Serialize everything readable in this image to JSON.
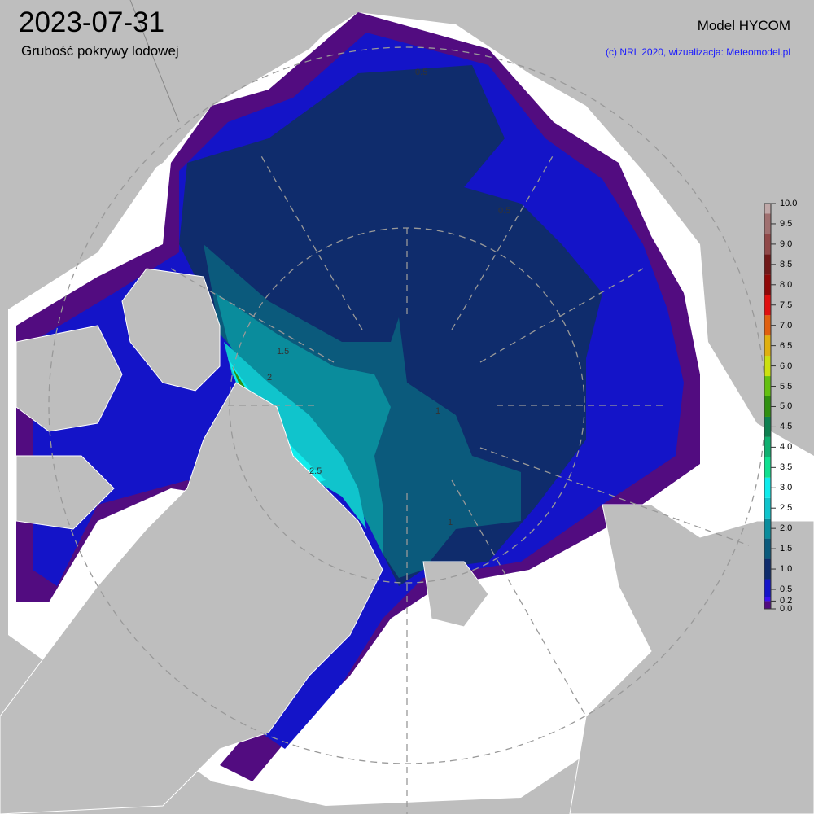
{
  "header": {
    "date": "2023-07-31",
    "subtitle": "Grubość pokrywy lodowej",
    "model": "Model HYCOM",
    "credit": "(c) NRL 2020, wizualizacja: Meteomodel.pl"
  },
  "colors": {
    "land": "#bebebe",
    "ocean": "#ffffff",
    "graticule": "#999999",
    "credit_text": "#1a1aff"
  },
  "colorbar": {
    "unit_range": [
      0,
      10
    ],
    "ticks": [
      "0.0",
      "0.2",
      "0.5",
      "1.0",
      "1.5",
      "2.0",
      "2.5",
      "3.0",
      "3.5",
      "4.0",
      "4.5",
      "5.0",
      "5.5",
      "6.0",
      "6.5",
      "7.0",
      "7.5",
      "8.0",
      "8.5",
      "9.0",
      "9.5",
      "10.0"
    ],
    "bands": [
      {
        "from": 0,
        "to": 0.2,
        "color": "#520c80"
      },
      {
        "from": 0.2,
        "to": 0.3,
        "color": "#3a10f0"
      },
      {
        "from": 0.3,
        "to": 0.75,
        "color": "#1414c8"
      },
      {
        "from": 0.75,
        "to": 1.25,
        "color": "#0f2c6c"
      },
      {
        "from": 1.25,
        "to": 1.75,
        "color": "#0b5a7c"
      },
      {
        "from": 1.75,
        "to": 2.25,
        "color": "#0a8c9c"
      },
      {
        "from": 2.25,
        "to": 2.75,
        "color": "#10c4cc"
      },
      {
        "from": 2.75,
        "to": 3.25,
        "color": "#10ecec"
      },
      {
        "from": 3.25,
        "to": 3.75,
        "color": "#10e090"
      },
      {
        "from": 3.75,
        "to": 4.25,
        "color": "#10b070"
      },
      {
        "from": 4.25,
        "to": 4.75,
        "color": "#0e8050"
      },
      {
        "from": 4.75,
        "to": 5.25,
        "color": "#309010"
      },
      {
        "from": 5.25,
        "to": 5.75,
        "color": "#64c010"
      },
      {
        "from": 5.75,
        "to": 6.25,
        "color": "#cce010"
      },
      {
        "from": 6.25,
        "to": 6.75,
        "color": "#e0b010"
      },
      {
        "from": 6.75,
        "to": 7.25,
        "color": "#e06010"
      },
      {
        "from": 7.25,
        "to": 7.75,
        "color": "#e01010"
      },
      {
        "from": 7.75,
        "to": 8.25,
        "color": "#900808"
      },
      {
        "from": 8.25,
        "to": 8.75,
        "color": "#701818"
      },
      {
        "from": 8.75,
        "to": 9.25,
        "color": "#904848"
      },
      {
        "from": 9.25,
        "to": 9.75,
        "color": "#a07070"
      },
      {
        "from": 9.75,
        "to": 10,
        "color": "#c0a8a8"
      }
    ]
  },
  "contour_labels": [
    "0.5",
    "0.5",
    "1",
    "1",
    "1.5",
    "2",
    "2.5"
  ]
}
